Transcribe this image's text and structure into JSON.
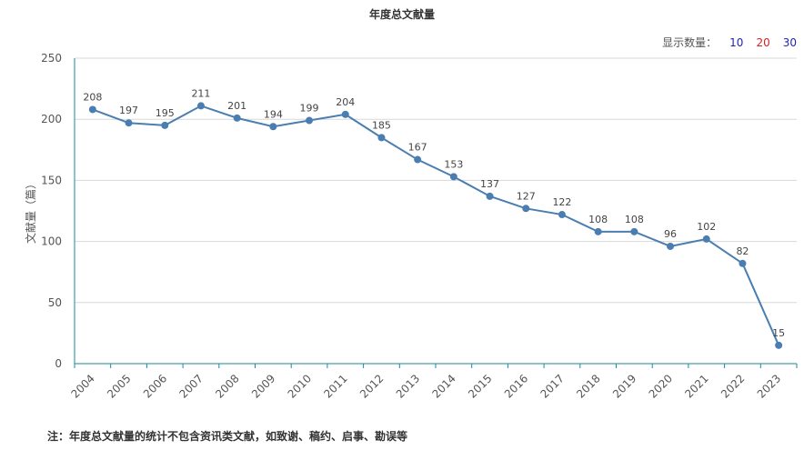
{
  "header": {
    "title": "年度总文献量"
  },
  "count_selector": {
    "label": "显示数量：",
    "options": [
      {
        "label": "10",
        "color": "#1f1fbf"
      },
      {
        "label": "20",
        "color": "#d42222"
      },
      {
        "label": "30",
        "color": "#1f1fbf"
      }
    ]
  },
  "footnote": "注：年度总文献量的统计不包含资讯类文献，如致谢、稿约、启事、勘误等",
  "colors": {
    "line": "#4a7eb0",
    "grid": "#d8d8d8",
    "axis": "#1a8a9a"
  },
  "chart_data": {
    "type": "line",
    "title": "年度总文献量",
    "xlabel": "",
    "ylabel": "文献量（篇）",
    "ylim": [
      0,
      250
    ],
    "yticks": [
      0,
      50,
      100,
      150,
      200,
      250
    ],
    "grid": true,
    "categories": [
      "2004",
      "2005",
      "2006",
      "2007",
      "2008",
      "2009",
      "2010",
      "2011",
      "2012",
      "2013",
      "2014",
      "2015",
      "2016",
      "2017",
      "2018",
      "2019",
      "2020",
      "2021",
      "2022",
      "2023"
    ],
    "series": [
      {
        "values": [
          208,
          197,
          195,
          211,
          201,
          194,
          199,
          204,
          185,
          167,
          153,
          137,
          127,
          122,
          108,
          108,
          96,
          102,
          82,
          15
        ]
      }
    ]
  }
}
